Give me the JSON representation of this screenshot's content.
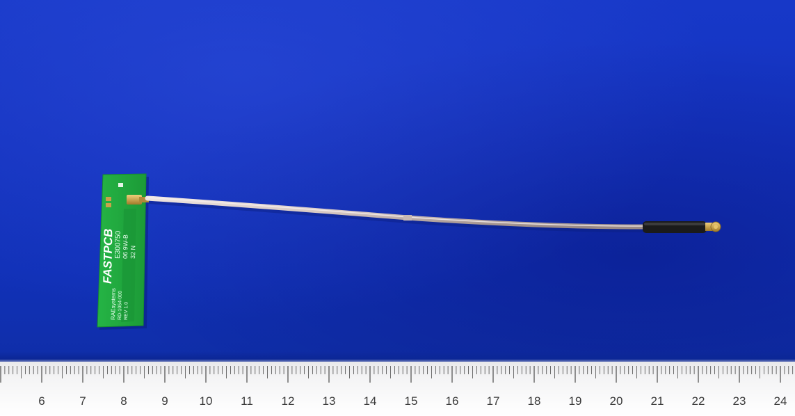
{
  "photo": {
    "background_color": "#1433c0",
    "ruler_color": "#f2f2f3"
  },
  "pcb": {
    "color": "#1fa83c",
    "logo": "FASTPCB",
    "part_number": "E300750",
    "line_2": "06 9W-B",
    "line_3": "32 N",
    "maker": "RAEsystems",
    "model": "RD-1054-000",
    "revision": "REV 1.0"
  },
  "cable": {
    "sheath_color": "#d8c9c4",
    "sleeve_color": "#1a1a1a",
    "connector_color": "#c9a24a"
  },
  "ruler": {
    "labels": [
      "6",
      "7",
      "8",
      "9",
      "10",
      "11",
      "12",
      "13",
      "14",
      "15",
      "16",
      "17",
      "18",
      "19",
      "20",
      "21",
      "22",
      "23",
      "24"
    ]
  }
}
